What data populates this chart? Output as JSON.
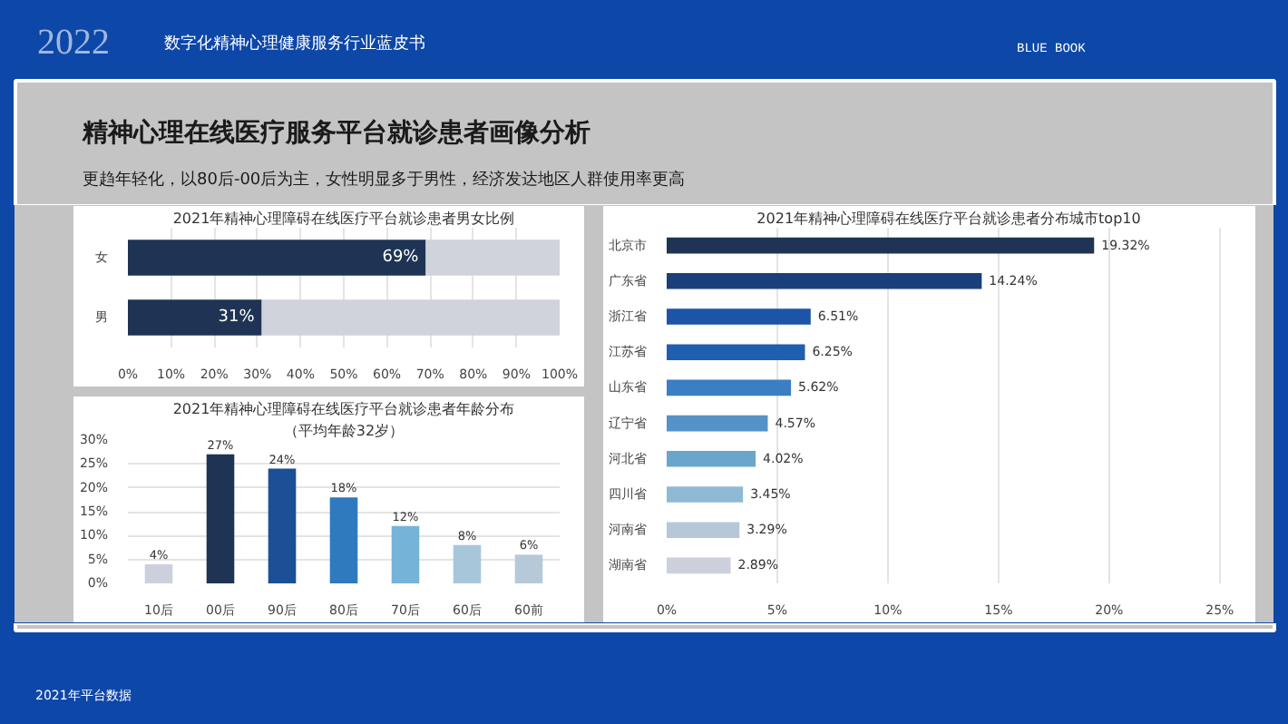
{
  "chart_data": [
    {
      "type": "other",
      "title": "精神心理在线医疗服务平台就诊患者画像分析",
      "subtitle": "更趋年轻化，以80后-00后为主，女性明显多于男性，经济发达地区人群使用率更高",
      "annotations": [
        "2022",
        "数字化精神心理健康服务行业蓝皮书",
        "BLUE BOOK",
        "2021年平台数据"
      ]
    },
    {
      "type": "bar",
      "orientation": "horizontal",
      "stacked": true,
      "title": "2021年精神心理障碍在线医疗平台就诊患者男女比例",
      "categories": [
        "女",
        "男"
      ],
      "series": [
        {
          "color": "#1f3454",
          "values": [
            69,
            31
          ],
          "value_labels": [
            "69%",
            "31%"
          ]
        },
        {
          "color": "#d0d2dc",
          "values": [
            31,
            69
          ]
        }
      ],
      "xlim": [
        0,
        100
      ],
      "xticks": [
        {
          "value": 0,
          "label": "0%"
        },
        {
          "value": 10,
          "label": "10%"
        },
        {
          "value": 20,
          "label": "20%"
        },
        {
          "value": 30,
          "label": "30%"
        },
        {
          "value": 40,
          "label": "40%"
        },
        {
          "value": 50,
          "label": "50%"
        },
        {
          "value": 60,
          "label": "60%"
        },
        {
          "value": 70,
          "label": "70%"
        },
        {
          "value": 80,
          "label": "80%"
        },
        {
          "value": 90,
          "label": "90%"
        },
        {
          "value": 100,
          "label": "100%"
        }
      ],
      "grid": "x"
    },
    {
      "type": "bar",
      "title": "2021年精神心理障碍在线医疗平台就诊患者年龄分布",
      "subtitle": "（平均年龄32岁）",
      "categories": [
        "10后",
        "00后",
        "90后",
        "80后",
        "70后",
        "60后",
        "60前"
      ],
      "values": [
        4,
        27,
        24,
        18,
        12,
        8,
        6
      ],
      "colors": [
        "#cdd0dc",
        "#1f3454",
        "#1b4f96",
        "#2f79bf",
        "#76b3d8",
        "#a8c6da",
        "#b5c9d9"
      ],
      "value_labels": [
        "4%",
        "27%",
        "24%",
        "18%",
        "12%",
        "8%",
        "6%"
      ],
      "ylim": [
        0,
        30
      ],
      "yticks": [
        {
          "value": 0,
          "label": "0%"
        },
        {
          "value": 5,
          "label": "5%"
        },
        {
          "value": 10,
          "label": "10%"
        },
        {
          "value": 15,
          "label": "15%"
        },
        {
          "value": 20,
          "label": "20%"
        },
        {
          "value": 25,
          "label": "25%"
        },
        {
          "value": 30,
          "label": "30%"
        }
      ],
      "grid": "y"
    },
    {
      "type": "bar",
      "orientation": "horizontal",
      "title": "2021年精神心理障碍在线医疗平台就诊患者分布城市top10",
      "categories": [
        "北京市",
        "广东省",
        "浙江省",
        "江苏省",
        "山东省",
        "辽宁省",
        "河北省",
        "四川省",
        "河南省",
        "湖南省"
      ],
      "values": [
        19.32,
        14.24,
        6.51,
        6.25,
        5.62,
        4.57,
        4.02,
        3.45,
        3.29,
        2.89
      ],
      "colors": [
        "#1f3454",
        "#1b3f7a",
        "#1c55a8",
        "#1e5fb0",
        "#3a7ec4",
        "#5592c8",
        "#6aa5cc",
        "#8fbad6",
        "#b5c7d9",
        "#cdd0dc"
      ],
      "value_labels": [
        "19.32%",
        "14.24%",
        "6.51%",
        "6.25%",
        "5.62%",
        "4.57%",
        "4.02%",
        "3.45%",
        "3.29%",
        "2.89%"
      ],
      "xlim": [
        0,
        25.5
      ],
      "xticks": [
        {
          "value": 0,
          "label": "0%"
        },
        {
          "value": 5,
          "label": "5%"
        },
        {
          "value": 10,
          "label": "10%"
        },
        {
          "value": 15,
          "label": "15%"
        },
        {
          "value": 20,
          "label": "20%"
        },
        {
          "value": 25,
          "label": "25%"
        }
      ],
      "grid": "x"
    }
  ]
}
